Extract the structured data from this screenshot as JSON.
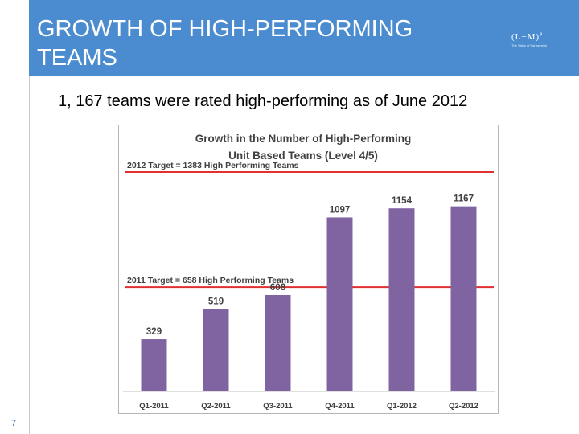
{
  "header": {
    "title_line1": "GROWTH OF HIGH-PERFORMING",
    "title_line2": "TEAMS",
    "logo_mark": "(L+M)",
    "logo_sup": "P",
    "logo_tagline": "The Value of Partnership"
  },
  "subtitle": "1, 167 teams were rated high-performing as of June 2012",
  "page_number": "7",
  "chart_data": {
    "type": "bar",
    "title_line1": "Growth in the Number of High-Performing",
    "title_line2": "Unit Based Teams (Level 4/5)",
    "categories": [
      "Q1-2011",
      "Q2-2011",
      "Q3-2011",
      "Q4-2011",
      "Q1-2012",
      "Q2-2012"
    ],
    "values": [
      329,
      519,
      608,
      1097,
      1154,
      1167
    ],
    "data_labels": [
      "329",
      "519",
      "608",
      "1097",
      "1154",
      "1167"
    ],
    "bar_color": "#8064a2",
    "target_color": "#e03030",
    "ylim": [
      0,
      1383
    ],
    "grid": false,
    "legend": "none",
    "targets": [
      {
        "value": 1383,
        "label": "2012 Target = 1383 High Performing Teams"
      },
      {
        "value": 658,
        "label": "2011 Target = 658 High Performing Teams"
      }
    ]
  }
}
